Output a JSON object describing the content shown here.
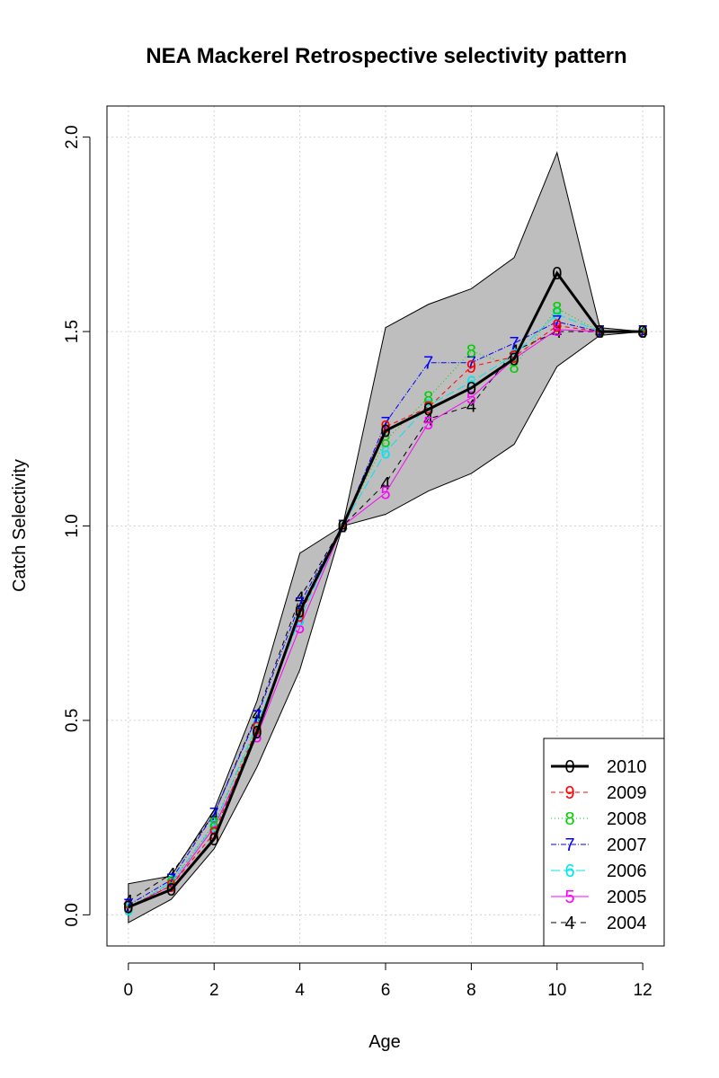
{
  "chart_data": {
    "type": "line",
    "title": "NEA Mackerel Retrospective selectivity pattern",
    "xlabel": "Age",
    "ylabel": "Catch Selectivity",
    "xlim": [
      -0.5,
      12.5
    ],
    "ylim": [
      -0.08,
      2.08
    ],
    "x_ticks": [
      0,
      2,
      4,
      6,
      8,
      10,
      12
    ],
    "y_ticks": [
      0.0,
      0.5,
      1.0,
      1.5,
      2.0
    ],
    "y_tick_labels": [
      "0.0",
      "0.5",
      "1.0",
      "1.5",
      "2.0"
    ],
    "grid": true,
    "legend_position": "bottom-right",
    "x": [
      0,
      1,
      2,
      3,
      4,
      5,
      6,
      7,
      8,
      9,
      10,
      11,
      12
    ],
    "band": {
      "fill": "#bebebe",
      "upper": [
        0.08,
        0.1,
        0.27,
        0.55,
        0.93,
        1.0,
        1.51,
        1.57,
        1.61,
        1.69,
        1.96,
        1.51,
        1.5
      ],
      "lower": [
        -0.02,
        0.04,
        0.17,
        0.38,
        0.63,
        1.0,
        1.03,
        1.09,
        1.135,
        1.21,
        1.41,
        1.49,
        1.5
      ]
    },
    "series": [
      {
        "name": "2010",
        "symbol": "0",
        "color": "#000000",
        "width": 3,
        "dash": "",
        "values": [
          0.02,
          0.065,
          0.195,
          0.47,
          0.78,
          1.0,
          1.245,
          1.3,
          1.355,
          1.43,
          1.65,
          1.5,
          1.5
        ]
      },
      {
        "name": "2009",
        "symbol": "9",
        "color": "#ff0000",
        "width": 1,
        "dash": "5,4",
        "values": [
          0.02,
          0.075,
          0.21,
          0.48,
          0.77,
          1.0,
          1.255,
          1.305,
          1.41,
          1.435,
          1.515,
          1.5,
          1.5
        ]
      },
      {
        "name": "2008",
        "symbol": "8",
        "color": "#00cd00",
        "width": 1,
        "dash": "1,3",
        "values": [
          0.02,
          0.08,
          0.235,
          0.48,
          0.78,
          1.0,
          1.22,
          1.33,
          1.45,
          1.41,
          1.56,
          1.5,
          1.5
        ]
      },
      {
        "name": "2007",
        "symbol": "7",
        "color": "#0000ff",
        "width": 1,
        "dash": "6,2,1,2",
        "values": [
          0.025,
          0.09,
          0.26,
          0.51,
          0.8,
          1.0,
          1.265,
          1.42,
          1.42,
          1.47,
          1.525,
          1.5,
          1.5
        ]
      },
      {
        "name": "2006",
        "symbol": "6",
        "color": "#00e5ee",
        "width": 1,
        "dash": "10,4",
        "values": [
          0.015,
          0.085,
          0.23,
          0.49,
          0.76,
          1.0,
          1.19,
          1.31,
          1.37,
          1.44,
          1.545,
          1.5,
          1.5
        ]
      },
      {
        "name": "2005",
        "symbol": "5",
        "color": "#ff00ff",
        "width": 1,
        "dash": "",
        "values": [
          0.02,
          0.075,
          0.225,
          0.46,
          0.74,
          1.0,
          1.085,
          1.265,
          1.33,
          1.43,
          1.505,
          1.5,
          1.5
        ]
      },
      {
        "name": "2004",
        "symbol": "4",
        "color": "#000000",
        "width": 1,
        "dash": "6,5",
        "values": [
          0.035,
          0.105,
          0.26,
          0.515,
          0.815,
          1.0,
          1.11,
          1.275,
          1.31,
          1.45,
          1.5,
          1.5,
          1.5
        ]
      }
    ]
  }
}
